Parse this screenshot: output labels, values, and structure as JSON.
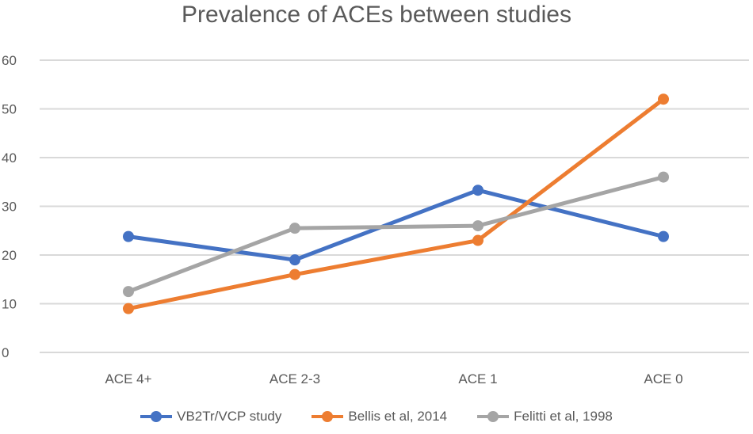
{
  "chart_data": {
    "type": "line",
    "title": "Prevalence of ACEs between studies",
    "xlabel": "",
    "ylabel": "",
    "categories": [
      "ACE 4+",
      "ACE 2-3",
      "ACE 1",
      "ACE 0"
    ],
    "ylim": [
      0,
      60
    ],
    "yticks": [
      0,
      10,
      20,
      30,
      40,
      50,
      60
    ],
    "grid": true,
    "legend_position": "bottom",
    "series": [
      {
        "name": "VB2Tr/VCP study",
        "color": "#4472C4",
        "values": [
          23.8,
          19.0,
          33.3,
          23.8
        ]
      },
      {
        "name": "Bellis et al, 2014",
        "color": "#ED7D31",
        "values": [
          9.0,
          16.0,
          23.0,
          52.0
        ]
      },
      {
        "name": "Felitti et al, 1998",
        "color": "#A5A5A5",
        "values": [
          12.5,
          25.5,
          26.0,
          36.0
        ]
      }
    ]
  }
}
